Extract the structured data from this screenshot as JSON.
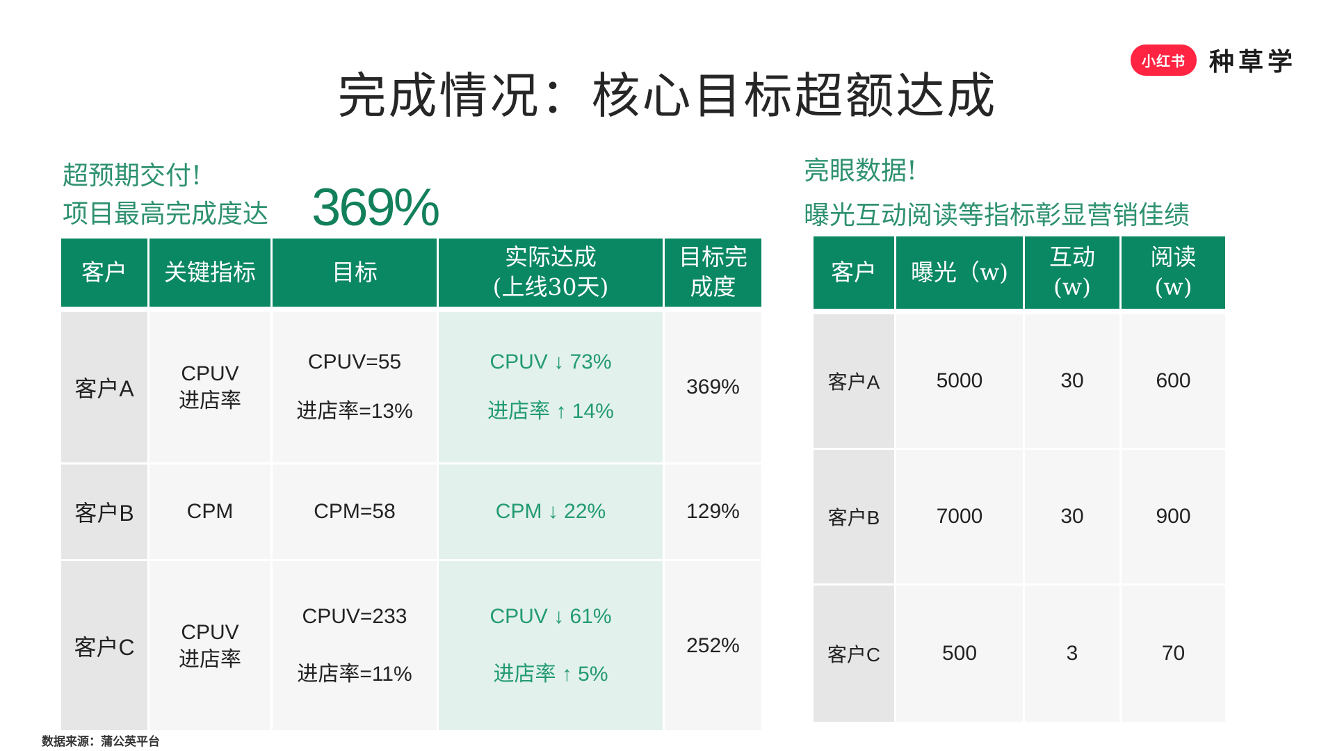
{
  "title": "完成情况：核心目标超额达成",
  "brand": {
    "logo_text": "小红书",
    "text": "种草学"
  },
  "left": {
    "heading1": "超预期交付!",
    "heading2": "项目最高完成度达",
    "big_value": "369%",
    "headers": [
      "客户",
      "关键指标",
      "目标",
      "实际达成",
      "(上线30天)",
      "目标完",
      "成度"
    ],
    "rows": [
      {
        "client": "客户A",
        "metric_a": "CPUV",
        "metric_b": "进店率",
        "target_a": "CPUV=55",
        "target_b": "进店率=13%",
        "actual_a": "CPUV ↓ 73%",
        "actual_b": "进店率 ↑ 14%",
        "completion": "369%"
      },
      {
        "client": "客户B",
        "metric": "CPM",
        "target": "CPM=58",
        "actual": "CPM ↓ 22%",
        "completion": "129%"
      },
      {
        "client": "客户C",
        "metric_a": "CPUV",
        "metric_b": "进店率",
        "target_a": "CPUV=233",
        "target_b": "进店率=11%",
        "actual_a": "CPUV ↓ 61%",
        "actual_b": "进店率 ↑ 5%",
        "completion": "252%"
      }
    ]
  },
  "right": {
    "heading1": "亮眼数据!",
    "heading2": "曝光互动阅读等指标彰显营销佳绩",
    "headers": [
      "客户",
      "曝光（w)",
      "互动",
      "(w)",
      "阅读",
      "(w)"
    ],
    "rows": [
      {
        "client": "客户A",
        "exposure": "5000",
        "interaction": "30",
        "reads": "600"
      },
      {
        "client": "客户B",
        "exposure": "7000",
        "interaction": "30",
        "reads": "900"
      },
      {
        "client": "客户C",
        "exposure": "500",
        "interaction": "3",
        "reads": "70"
      }
    ]
  },
  "source": "数据来源：蒲公英平台",
  "colors": {
    "header_green": "#0a8763",
    "accent_text": "#2e9170",
    "highlight_bg": "#e2f1ec",
    "brand_red": "#ff2442"
  }
}
